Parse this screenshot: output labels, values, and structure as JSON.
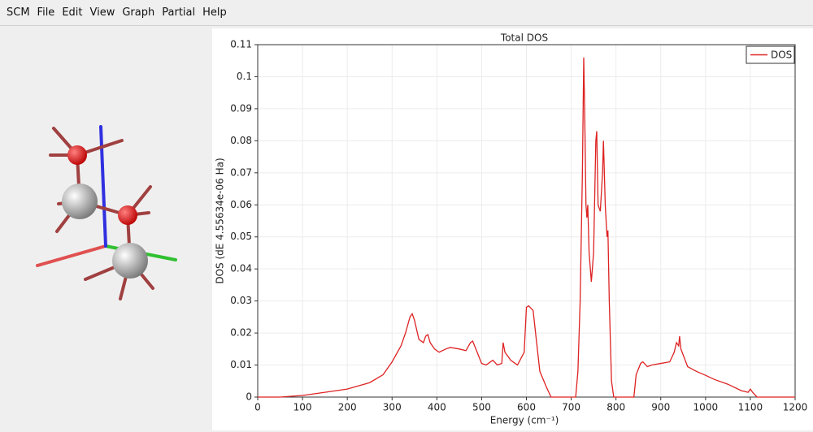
{
  "menu": [
    "SCM",
    "File",
    "Edit",
    "View",
    "Graph",
    "Partial",
    "Help"
  ],
  "chart_data": {
    "type": "line",
    "title": "Total DOS",
    "x_label": "Energy (cm⁻¹)",
    "y_label": "DOS (dE 4.55634e-06 Ha)",
    "xlim": [
      0,
      1200
    ],
    "xticks": [
      0,
      100,
      200,
      300,
      400,
      500,
      600,
      700,
      800,
      900,
      1000,
      1100,
      1200
    ],
    "ylim": [
      0,
      0.11
    ],
    "yticks": [
      0,
      0.01,
      0.02,
      0.03,
      0.04,
      0.05,
      0.06,
      0.07,
      0.08,
      0.09,
      0.1,
      0.11
    ],
    "grid": true,
    "legend": "upper right",
    "series": [
      {
        "name": "DOS",
        "color": "#dd2222",
        "x": [
          0,
          50,
          100,
          150,
          200,
          250,
          280,
          300,
          320,
          330,
          340,
          345,
          350,
          360,
          370,
          375,
          380,
          385,
          395,
          405,
          420,
          430,
          450,
          465,
          475,
          480,
          490,
          500,
          510,
          525,
          535,
          545,
          548,
          552,
          565,
          580,
          595,
          600,
          605,
          615,
          622,
          630,
          645,
          655,
          710,
          715,
          720,
          725,
          728,
          730,
          733,
          735,
          737,
          740,
          745,
          750,
          755,
          757,
          760,
          765,
          770,
          772,
          776,
          780,
          782,
          785,
          790,
          795,
          840,
          845,
          855,
          860,
          870,
          880,
          900,
          920,
          930,
          935,
          940,
          942,
          945,
          960,
          980,
          1000,
          1020,
          1050,
          1080,
          1095,
          1100,
          1105,
          1115,
          1200
        ],
        "values": [
          0,
          0,
          0.0005,
          0.0015,
          0.0025,
          0.0045,
          0.007,
          0.011,
          0.016,
          0.02,
          0.025,
          0.026,
          0.024,
          0.018,
          0.017,
          0.019,
          0.0195,
          0.017,
          0.015,
          0.014,
          0.015,
          0.0155,
          0.015,
          0.0145,
          0.017,
          0.0175,
          0.014,
          0.0105,
          0.01,
          0.0115,
          0.01,
          0.0105,
          0.017,
          0.014,
          0.0115,
          0.01,
          0.014,
          0.028,
          0.0285,
          0.027,
          0.018,
          0.008,
          0.003,
          0,
          0,
          0.008,
          0.03,
          0.07,
          0.106,
          0.09,
          0.06,
          0.056,
          0.06,
          0.045,
          0.036,
          0.045,
          0.08,
          0.083,
          0.06,
          0.058,
          0.07,
          0.08,
          0.06,
          0.05,
          0.052,
          0.03,
          0.005,
          0,
          0,
          0.007,
          0.0105,
          0.011,
          0.0095,
          0.01,
          0.0105,
          0.011,
          0.014,
          0.017,
          0.016,
          0.019,
          0.015,
          0.0095,
          0.008,
          0.0068,
          0.0055,
          0.004,
          0.002,
          0.0015,
          0.0025,
          0.0015,
          0,
          0
        ]
      }
    ]
  }
}
